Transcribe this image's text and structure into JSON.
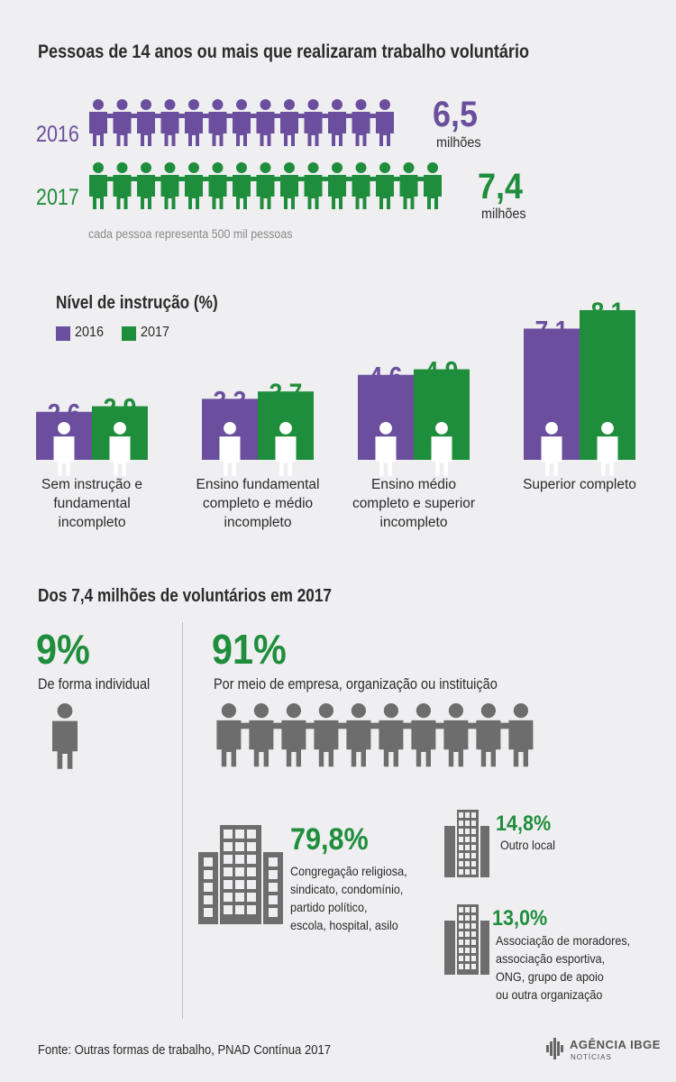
{
  "title": "Pessoas de 14 anos ou mais que realizaram trabalho voluntário",
  "colors": {
    "purple": "#6b4f9e",
    "green": "#1f8e3c",
    "gray": "#6d6d6d",
    "text": "#2b2b2b"
  },
  "pictogram": {
    "rows": [
      {
        "year": "2016",
        "value": "6,5",
        "unit": "milhões",
        "icons": 13
      },
      {
        "year": "2017",
        "value": "7,4",
        "unit": "milhões",
        "icons": 15
      }
    ],
    "note": "cada pessoa representa 500 mil pessoas"
  },
  "education": {
    "heading": "Nível de instrução (%)",
    "legend": [
      "2016",
      "2017"
    ]
  },
  "chart_data": {
    "type": "bar",
    "title": "Nível de instrução (%)",
    "categories": [
      "Sem instrução e fundamental incompleto",
      "Ensino fundamental completo e médio incompleto",
      "Ensino médio completo e superior incompleto",
      "Superior completo"
    ],
    "category_lines": [
      [
        "Sem instrução e",
        "fundamental",
        "incompleto"
      ],
      [
        "Ensino fundamental",
        "completo e médio",
        "incompleto"
      ],
      [
        "Ensino médio",
        "completo e superior",
        "incompleto"
      ],
      [
        "Superior completo"
      ]
    ],
    "series": [
      {
        "name": "2016",
        "values": [
          2.6,
          3.3,
          4.6,
          7.1
        ],
        "labels": [
          "2,6",
          "3,3",
          "4,6",
          "7,1"
        ],
        "color": "#6b4f9e"
      },
      {
        "name": "2017",
        "values": [
          2.9,
          3.7,
          4.9,
          8.1
        ],
        "labels": [
          "2,9",
          "3,7",
          "4,9",
          "8,1"
        ],
        "color": "#1f8e3c"
      }
    ],
    "legend": "top-left",
    "grid": false
  },
  "volunteers": {
    "heading": "Dos 7,4 milhões de voluntários em 2017",
    "individual": {
      "pct": "9%",
      "label": "De forma individual"
    },
    "organization": {
      "pct": "91%",
      "label": "Por meio de empresa, organização ou instituição",
      "icons": 10
    },
    "breakdown": [
      {
        "pct": "79,8%",
        "lines": [
          "Congregação religiosa,",
          "sindicato, condomínio,",
          "partido político,",
          "escola, hospital, asilo"
        ]
      },
      {
        "pct": "14,8%",
        "lines": [
          "Outro local"
        ]
      },
      {
        "pct": "13,0%",
        "lines": [
          "Associação de moradores,",
          "associação esportiva,",
          "ONG, grupo de apoio",
          "ou outra organização"
        ]
      }
    ]
  },
  "footer": "Fonte: Outras formas de trabalho, PNAD Contínua 2017",
  "brand": {
    "line1": "AGÊNCIA IBGE",
    "line2": "NOTÍCIAS"
  }
}
